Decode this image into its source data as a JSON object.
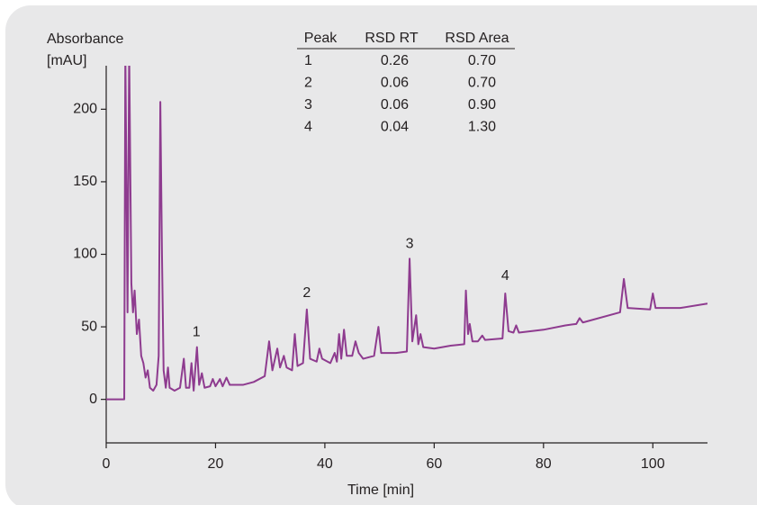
{
  "chart_data": {
    "type": "line",
    "ylabel": [
      "Absorbance",
      "[mAU]"
    ],
    "xlabel": "Time [min]",
    "xlim": [
      0,
      110
    ],
    "ylim": [
      -30,
      230
    ],
    "xticks": [
      0,
      20,
      40,
      60,
      80,
      100
    ],
    "yticks": [
      0,
      50,
      100,
      150,
      200
    ],
    "series": [
      {
        "color": "#8e3b8f",
        "x": [
          0,
          3.0,
          3.3,
          3.5,
          3.9,
          4.2,
          4.6,
          4.9,
          5.2,
          5.6,
          6.0,
          6.4,
          6.8,
          7.2,
          7.6,
          8.0,
          8.6,
          9.2,
          9.6,
          9.9,
          10.2,
          10.5,
          10.9,
          11.3,
          11.6,
          12.5,
          13.5,
          14.2,
          14.6,
          15.2,
          15.6,
          16.0,
          16.6,
          17.0,
          17.5,
          18.0,
          19.0,
          19.5,
          20.0,
          20.8,
          21.3,
          22.0,
          22.6,
          25,
          27,
          29,
          29.8,
          30.4,
          31.3,
          31.8,
          32.5,
          33.0,
          34.0,
          34.5,
          35.0,
          36.0,
          36.7,
          37.3,
          38.5,
          39.0,
          39.5,
          41,
          41.8,
          42.2,
          42.6,
          43.0,
          43.5,
          44.0,
          45.0,
          45.6,
          46.2,
          47,
          49,
          49.8,
          50.3,
          53,
          55,
          55.5,
          56.0,
          56.7,
          57.1,
          57.5,
          58,
          60,
          63,
          65.5,
          65.8,
          66.2,
          66.5,
          67,
          68,
          68.8,
          69.3,
          72.5,
          73.0,
          73.6,
          74.5,
          75,
          75.5,
          80,
          84,
          86,
          86.6,
          87.2,
          94,
          94.7,
          95.4,
          99.5,
          100.0,
          100.5,
          105,
          110
        ],
        "values": [
          0,
          0,
          0,
          240,
          60,
          240,
          80,
          60,
          75,
          45,
          55,
          30,
          25,
          15,
          20,
          8,
          6,
          10,
          30,
          205,
          100,
          20,
          8,
          22,
          8,
          6,
          8,
          28,
          8,
          8,
          25,
          6,
          36,
          10,
          18,
          8,
          9,
          14,
          9,
          14,
          9,
          15,
          10,
          10,
          12,
          16,
          40,
          20,
          35,
          22,
          30,
          22,
          20,
          45,
          23,
          25,
          62,
          28,
          26,
          35,
          28,
          25,
          32,
          26,
          45,
          28,
          48,
          30,
          30,
          40,
          32,
          28,
          30,
          50,
          32,
          32,
          33,
          97,
          40,
          58,
          38,
          45,
          36,
          35,
          37,
          38,
          75,
          45,
          52,
          40,
          40,
          44,
          41,
          42,
          73,
          47,
          46,
          51,
          46,
          48,
          51,
          52,
          56,
          53,
          60,
          83,
          63,
          62,
          73,
          63,
          63,
          66
        ]
      }
    ],
    "annotations": [
      {
        "text": "1",
        "x": 16.5,
        "y": 46
      },
      {
        "text": "2",
        "x": 36.7,
        "y": 73
      },
      {
        "text": "3",
        "x": 55.5,
        "y": 107
      },
      {
        "text": "4",
        "x": 73,
        "y": 85
      }
    ],
    "table": {
      "columns": [
        "Peak",
        "RSD RT",
        "RSD Area"
      ],
      "rows": [
        [
          "1",
          "0.26",
          "0.70"
        ],
        [
          "2",
          "0.06",
          "0.70"
        ],
        [
          "3",
          "0.06",
          "0.90"
        ],
        [
          "4",
          "0.04",
          "1.30"
        ]
      ]
    }
  }
}
